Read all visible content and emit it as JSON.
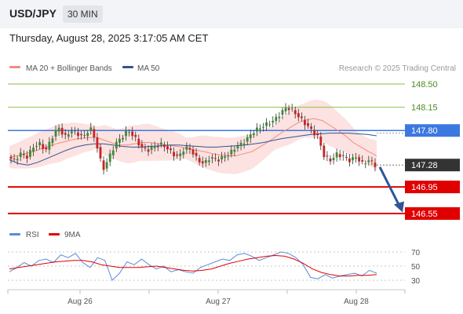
{
  "header": {
    "symbol": "USD/JPY",
    "interval": "30 MIN",
    "timestamp": "Thursday, August 28, 2025 3:17:05 AM CET"
  },
  "credit": "Research © 2025 Trading Central",
  "colors": {
    "bollinger_band": "#fbd8d6",
    "ma20": "#f28b82",
    "ma50": "#2f5597",
    "candle_up": "#3d8b37",
    "candle_down": "#cc2222",
    "pivot": "#3c78e0",
    "support": "#e00000",
    "resistance": "#8bc34a",
    "current_price": "#333333",
    "arrow": "#2f5597",
    "rsi": "#5b8bd9",
    "rsi_ma": "#e00000"
  },
  "chart_data": [
    {
      "type": "candlestick",
      "legend": [
        "MA 20 + Bollinger Bands",
        "MA 50"
      ],
      "y_range": [
        146.42,
        148.72
      ],
      "x_tick_labels": [
        "Aug 26",
        "Aug 27",
        "Aug 28"
      ],
      "levels": [
        {
          "label": "148.50",
          "value": 148.5,
          "kind": "resistance"
        },
        {
          "label": "148.15",
          "value": 148.15,
          "kind": "resistance"
        },
        {
          "label": "147.80",
          "value": 147.8,
          "kind": "pivot"
        },
        {
          "label": "147.28",
          "value": 147.28,
          "kind": "current"
        },
        {
          "label": "146.95",
          "value": 146.95,
          "kind": "support"
        },
        {
          "label": "146.55",
          "value": 146.55,
          "kind": "support"
        }
      ],
      "price_path": [
        147.4,
        147.35,
        147.45,
        147.4,
        147.55,
        147.6,
        147.5,
        147.7,
        147.85,
        147.7,
        147.8,
        147.75,
        147.7,
        147.85,
        147.6,
        147.2,
        147.4,
        147.6,
        147.7,
        147.8,
        147.7,
        147.55,
        147.5,
        147.55,
        147.6,
        147.55,
        147.45,
        147.4,
        147.55,
        147.5,
        147.35,
        147.3,
        147.4,
        147.35,
        147.4,
        147.45,
        147.55,
        147.6,
        147.7,
        147.8,
        147.85,
        147.9,
        147.95,
        148.05,
        148.15,
        148.1,
        148.0,
        147.9,
        147.8,
        147.7,
        147.4,
        147.35,
        147.45,
        147.4,
        147.35,
        147.4,
        147.3,
        147.35,
        147.28
      ],
      "ma20": [
        147.4,
        147.42,
        147.45,
        147.48,
        147.52,
        147.56,
        147.6,
        147.63,
        147.66,
        147.68,
        147.69,
        147.7,
        147.66,
        147.62,
        147.58,
        147.58,
        147.6,
        147.62,
        147.62,
        147.6,
        147.58,
        147.57,
        147.55,
        147.52,
        147.5,
        147.48,
        147.45,
        147.43,
        147.42,
        147.42,
        147.45,
        147.48,
        147.55,
        147.62,
        147.7,
        147.78,
        147.85,
        147.92,
        147.96,
        147.98,
        147.95,
        147.88,
        147.8,
        147.72,
        147.62,
        147.55,
        147.48,
        147.42
      ],
      "ma50": [
        147.36,
        147.3,
        147.28,
        147.32,
        147.38,
        147.44,
        147.5,
        147.55,
        147.58,
        147.6,
        147.6,
        147.58,
        147.56,
        147.55,
        147.55,
        147.56,
        147.57,
        147.58,
        147.58,
        147.57,
        147.56,
        147.55,
        147.55,
        147.56,
        147.57,
        147.58,
        147.6,
        147.62,
        147.65,
        147.68,
        147.7,
        147.72,
        147.74,
        147.75,
        147.76,
        147.76,
        147.76,
        147.75,
        147.74,
        147.72
      ]
    },
    {
      "type": "line",
      "legend": [
        "RSI",
        "9MA"
      ],
      "y_ticks": [
        70,
        50,
        30
      ],
      "y_range": [
        20,
        80
      ],
      "rsi": [
        42,
        48,
        55,
        50,
        58,
        60,
        55,
        66,
        62,
        68,
        55,
        48,
        62,
        58,
        30,
        40,
        56,
        52,
        60,
        52,
        46,
        50,
        42,
        45,
        42,
        40,
        48,
        52,
        56,
        60,
        58,
        66,
        68,
        64,
        58,
        62,
        66,
        70,
        68,
        62,
        52,
        34,
        32,
        38,
        33,
        36,
        38,
        40,
        36,
        44,
        40
      ],
      "ma9": [
        46,
        48,
        50,
        52,
        54,
        56,
        57,
        58,
        58,
        56,
        52,
        50,
        48,
        48,
        48,
        49,
        50,
        48,
        46,
        44,
        43,
        44,
        46,
        50,
        54,
        57,
        60,
        62,
        64,
        65,
        64,
        60,
        54,
        46,
        41,
        38,
        36,
        36,
        37,
        37,
        38
      ]
    }
  ]
}
